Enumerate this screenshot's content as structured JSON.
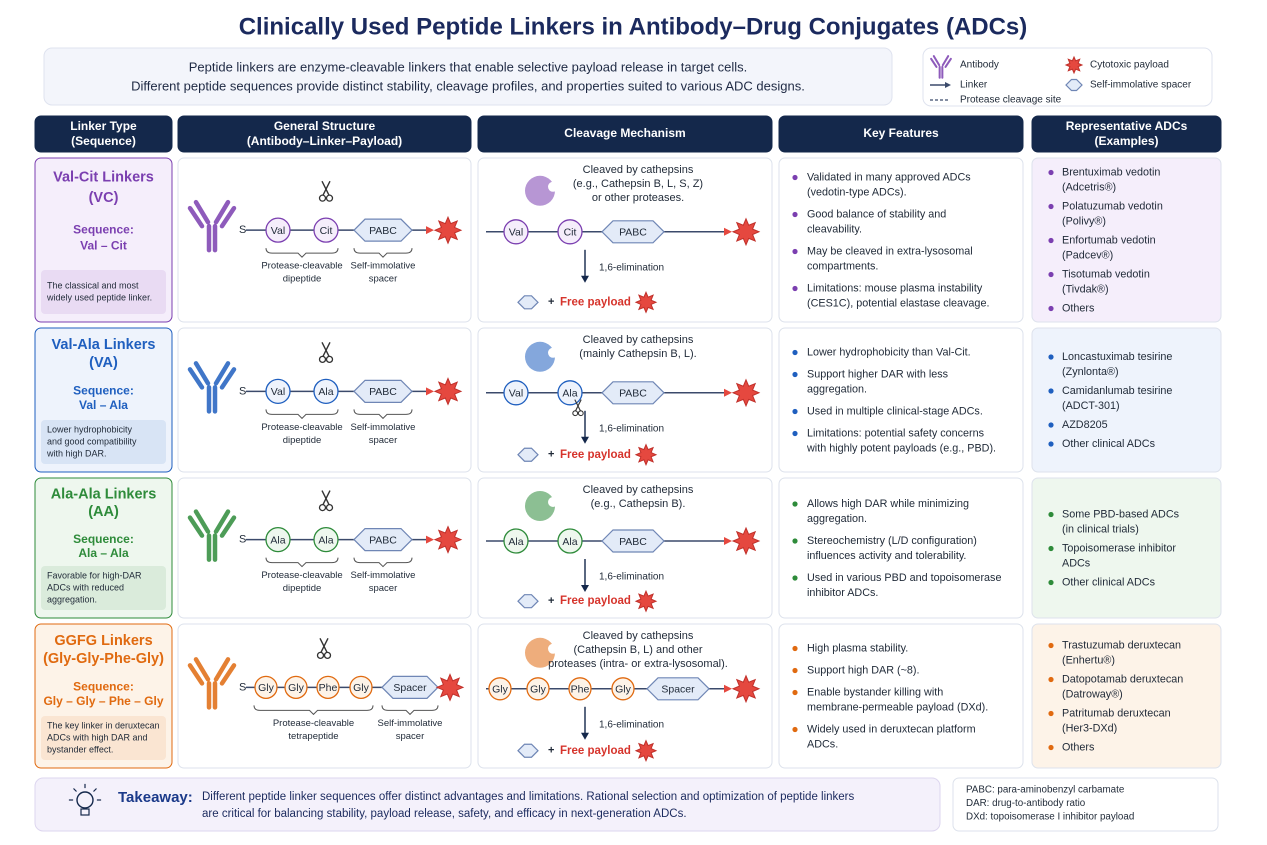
{
  "title": "Clinically Used Peptide Linkers in Antibody–Drug Conjugates (ADCs)",
  "intro": [
    "Peptide linkers are enzyme-cleavable linkers that enable selective payload release in target cells.",
    "Different peptide sequences provide distinct stability, cleavage profiles, and properties suited to various ADC designs."
  ],
  "legend": {
    "antibody": "Antibody",
    "linker": "Linker",
    "cleavage_site": "Protease cleavage site",
    "payload": "Cytotoxic payload",
    "spacer": "Self-immolative spacer"
  },
  "headers": [
    [
      "Linker Type",
      "(Sequence)"
    ],
    [
      "General Structure",
      "(Antibody–Linker–Payload)"
    ],
    [
      "Cleavage Mechanism"
    ],
    [
      "Key Features"
    ],
    [
      "Representative ADCs",
      "(Examples)"
    ]
  ],
  "attachment": "S",
  "plus": "+",
  "rows": [
    {
      "name": "Val-Cit Linkers",
      "abbr": "(VC)",
      "sequence_label": "Sequence:",
      "sequence": "Val – Cit",
      "note": [
        "The classical and most",
        "widely used peptide linker."
      ],
      "color": "#7b3fb0",
      "tint": "#f5eefb",
      "residues": [
        "Val",
        "Cit"
      ],
      "spacer": "PABC",
      "cleavable_label": [
        "Protease-cleavable",
        "dipeptide"
      ],
      "spacer_label": [
        "Self-immolative",
        "spacer"
      ],
      "mechanism": [
        "Cleaved by cathepsins",
        "(e.g., Cathepsin B, L, S, Z)",
        "or other proteases."
      ],
      "elimination": "1,6-elimination",
      "free_payload": "Free payload",
      "features": [
        [
          "Validated in many approved ADCs",
          "(vedotin-type ADCs)."
        ],
        [
          "Good balance of stability and",
          "cleavability."
        ],
        [
          "May be cleaved in extra-lysosomal",
          "compartments."
        ],
        [
          "Limitations: mouse plasma instability",
          "(CES1C), potential elastase cleavage."
        ]
      ],
      "examples": [
        [
          "Brentuximab vedotin",
          "(Adcetris®)"
        ],
        [
          "Polatuzumab vedotin",
          "(Polivy®)"
        ],
        [
          "Enfortumab vedotin",
          "(Padcev®)"
        ],
        [
          "Tisotumab vedotin",
          "(Tivdak®)"
        ],
        [
          "Others"
        ]
      ]
    },
    {
      "name": "Val-Ala Linkers",
      "abbr": "(VA)",
      "sequence_label": "Sequence:",
      "sequence": "Val – Ala",
      "note": [
        "Lower hydrophobicity",
        "and good compatibility",
        "with high DAR."
      ],
      "color": "#1f5fbf",
      "tint": "#eef3fc",
      "residues": [
        "Val",
        "Ala"
      ],
      "spacer": "PABC",
      "cleavable_label": [
        "Protease-cleavable",
        "dipeptide"
      ],
      "spacer_label": [
        "Self-immolative",
        "spacer"
      ],
      "mechanism": [
        "Cleaved by cathepsins",
        "(mainly Cathepsin B, L)."
      ],
      "elimination": "1,6-elimination",
      "free_payload": "Free payload",
      "features": [
        [
          "Lower hydrophobicity than Val-Cit."
        ],
        [
          "Support higher DAR with less",
          "aggregation."
        ],
        [
          "Used in multiple clinical-stage ADCs."
        ],
        [
          "Limitations: potential safety concerns",
          "with highly potent payloads (e.g., PBD)."
        ]
      ],
      "examples": [
        [
          "Loncastuximab tesirine",
          "(Zynlonta®)"
        ],
        [
          "Camidanlumab tesirine",
          "(ADCT-301)"
        ],
        [
          "AZD8205"
        ],
        [
          "Other clinical ADCs"
        ]
      ]
    },
    {
      "name": "Ala-Ala Linkers",
      "abbr": "(AA)",
      "sequence_label": "Sequence:",
      "sequence": "Ala – Ala",
      "note": [
        "Favorable for high-DAR",
        "ADCs with reduced",
        "aggregation."
      ],
      "color": "#2e8b3a",
      "tint": "#eef7ee",
      "residues": [
        "Ala",
        "Ala"
      ],
      "spacer": "PABC",
      "cleavable_label": [
        "Protease-cleavable",
        "dipeptide"
      ],
      "spacer_label": [
        "Self-immolative",
        "spacer"
      ],
      "mechanism": [
        "Cleaved by cathepsins",
        "(e.g., Cathepsin B)."
      ],
      "elimination": "1,6-elimination",
      "free_payload": "Free payload",
      "features": [
        [
          "Allows high DAR while minimizing",
          "aggregation."
        ],
        [
          "Stereochemistry (L/D configuration)",
          "influences activity and tolerability."
        ],
        [
          "Used in various PBD and topoisomerase",
          "inhibitor ADCs."
        ]
      ],
      "examples": [
        [
          "Some PBD-based ADCs",
          "(in clinical trials)"
        ],
        [
          "Topoisomerase inhibitor",
          "ADCs"
        ],
        [
          "Other clinical ADCs"
        ]
      ]
    },
    {
      "name": "GGFG Linkers",
      "abbr": "(Gly-Gly-Phe-Gly)",
      "sequence_label": "Sequence:",
      "sequence": "Gly – Gly – Phe – Gly",
      "note": [
        "The key linker in deruxtecan",
        "ADCs with high DAR and",
        "bystander effect."
      ],
      "color": "#e06a10",
      "tint": "#fdf3e8",
      "residues": [
        "Gly",
        "Gly",
        "Phe",
        "Gly"
      ],
      "spacer": "Spacer",
      "cleavable_label": [
        "Protease-cleavable",
        "tetrapeptide"
      ],
      "spacer_label": [
        "Self-immolative",
        "spacer"
      ],
      "mechanism": [
        "Cleaved by cathepsins",
        "(Cathepsin B, L) and other",
        "proteases (intra- or extra-lysosomal)."
      ],
      "elimination": "1,6-elimination",
      "free_payload": "Free payload",
      "features": [
        [
          "High plasma stability."
        ],
        [
          "Support high DAR (~8)."
        ],
        [
          "Enable bystander killing with",
          "membrane-permeable payload (DXd)."
        ],
        [
          "Widely used in deruxtecan platform",
          "ADCs."
        ]
      ],
      "examples": [
        [
          "Trastuzumab deruxtecan",
          "(Enhertu®)"
        ],
        [
          "Datopotamab deruxtecan",
          "(Datroway®)"
        ],
        [
          "Patritumab deruxtecan",
          "(Her3-DXd)"
        ],
        [
          "Others"
        ]
      ]
    }
  ],
  "takeaway": {
    "label": "Takeaway:",
    "text": [
      "Different peptide linker sequences offer distinct advantages and limitations. Rational selection and optimization of peptide linkers",
      "are critical for balancing stability, payload release, safety, and efficacy in next-generation ADCs."
    ]
  },
  "abbreviations": [
    "PABC: para-aminobenzyl carbamate",
    "DAR: drug-to-antibody ratio",
    "DXd: topoisomerase I inhibitor payload"
  ]
}
